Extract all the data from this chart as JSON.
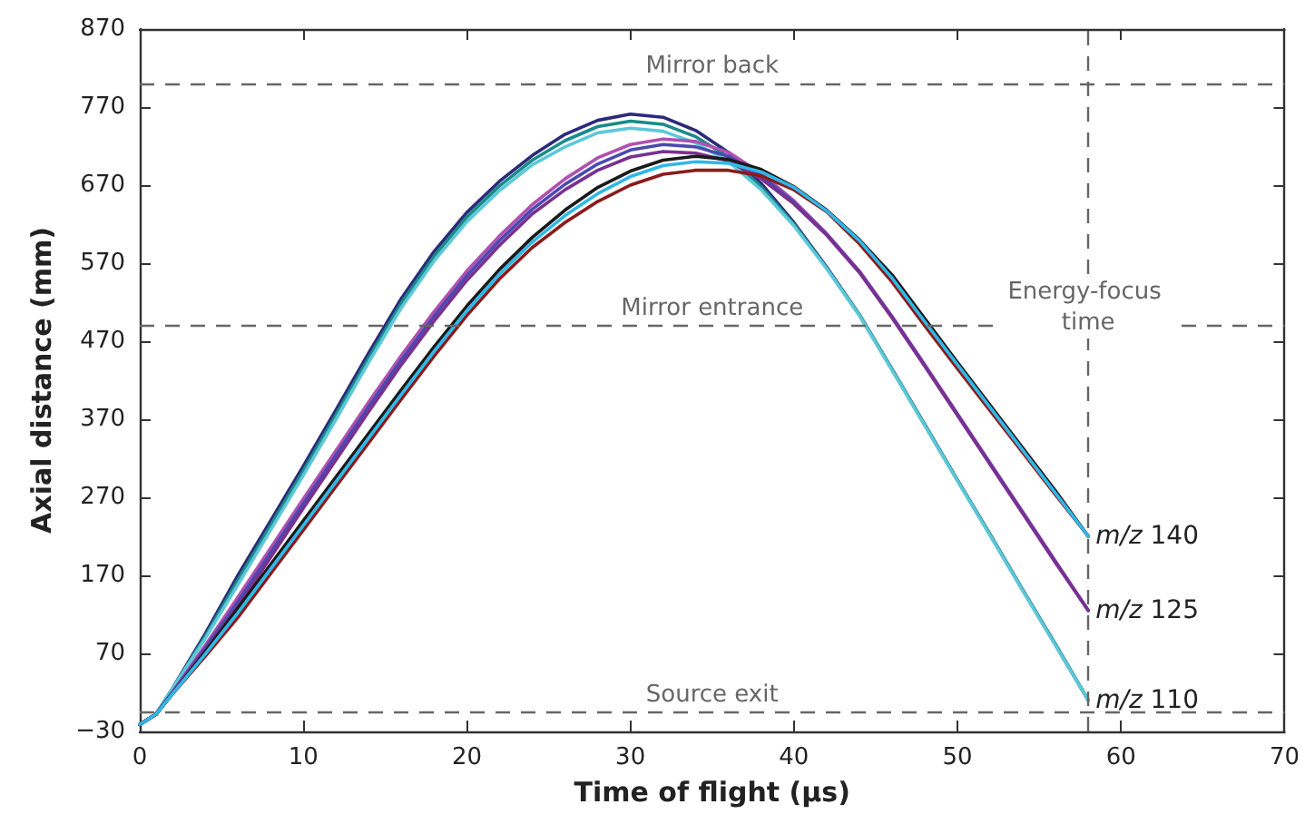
{
  "chart_data": {
    "type": "line",
    "xlabel": "Time of flight (µs)",
    "ylabel": "Axial distance (mm)",
    "x": [
      0,
      1,
      2,
      4,
      6,
      8,
      10,
      12,
      14,
      16,
      18,
      20,
      22,
      24,
      26,
      28,
      30,
      32,
      34,
      36,
      38,
      40,
      42,
      44,
      46,
      48,
      50,
      52,
      54,
      56,
      58
    ],
    "series": [
      {
        "color": "#2b2a7a",
        "values": [
          -21,
          -8,
          25,
          95,
          170,
          240,
          310,
          382,
          455,
          525,
          585,
          635,
          675,
          708,
          735,
          753,
          761,
          757,
          740,
          712,
          672,
          622,
          565,
          504,
          434,
          363,
          292,
          222,
          151,
          81,
          10
        ]
      },
      {
        "color": "#1a8a8a",
        "values": [
          -21,
          -8,
          25,
          92,
          164,
          234,
          304,
          376,
          449,
          519,
          579,
          629,
          669,
          702,
          727,
          745,
          752,
          748,
          732,
          706,
          668,
          620,
          564,
          504,
          434,
          363,
          292,
          222,
          151,
          81,
          10
        ]
      },
      {
        "name": "m/z 110",
        "color": "#5cc8d8",
        "values": [
          -21,
          -8,
          25,
          89,
          158,
          228,
          298,
          370,
          443,
          513,
          573,
          623,
          663,
          696,
          719,
          737,
          743,
          739,
          724,
          700,
          664,
          618,
          563,
          503,
          433,
          362,
          291,
          221,
          150,
          80,
          10
        ]
      },
      {
        "color": "#b050b0",
        "values": [
          -21,
          -8,
          20,
          80,
          142,
          205,
          268,
          330,
          392,
          452,
          508,
          560,
          605,
          645,
          678,
          705,
          722,
          729,
          726,
          712,
          685,
          650,
          608,
          560,
          502,
          440,
          377,
          314,
          251,
          188,
          125
        ]
      },
      {
        "name": "m/z 125",
        "color": "#4a4ab0",
        "values": [
          -21,
          -8,
          20,
          77,
          136,
          199,
          262,
          324,
          386,
          446,
          502,
          554,
          599,
          639,
          671,
          697,
          715,
          722,
          719,
          707,
          682,
          648,
          607,
          559,
          501,
          439,
          376,
          313,
          250,
          187,
          125
        ]
      },
      {
        "color": "#7a3090",
        "values": [
          -21,
          -8,
          20,
          74,
          130,
          193,
          256,
          318,
          380,
          440,
          496,
          548,
          593,
          633,
          664,
          689,
          706,
          713,
          711,
          701,
          678,
          646,
          606,
          558,
          500,
          438,
          375,
          312,
          249,
          186,
          125
        ]
      },
      {
        "color": "#8b1a1a",
        "values": [
          -21,
          -8,
          18,
          66,
          116,
          172,
          228,
          284,
          340,
          396,
          451,
          503,
          550,
          590,
          622,
          649,
          670,
          684,
          689,
          689,
          682,
          664,
          636,
          595,
          546,
          490,
          435,
          381,
          327,
          273,
          220
        ]
      },
      {
        "color": "#1a1a1a",
        "values": [
          -21,
          -8,
          18,
          72,
          128,
          184,
          240,
          296,
          352,
          408,
          463,
          515,
          562,
          603,
          638,
          667,
          688,
          702,
          707,
          703,
          690,
          668,
          638,
          600,
          555,
          499,
          443,
          388,
          333,
          278,
          220
        ]
      },
      {
        "name": "m/z 140",
        "color": "#30b8e8",
        "values": [
          -21,
          -8,
          18,
          69,
          122,
          178,
          234,
          290,
          346,
          402,
          457,
          509,
          556,
          597,
          631,
          659,
          681,
          695,
          700,
          698,
          687,
          667,
          637,
          599,
          551,
          495,
          440,
          385,
          330,
          275,
          220
        ]
      }
    ],
    "xlim": [
      0,
      70
    ],
    "xticks": [
      0,
      10,
      20,
      30,
      40,
      50,
      60,
      70
    ],
    "ylim": [
      -30,
      870
    ],
    "yticks": [
      {
        "value": -30,
        "label": "−30"
      },
      70,
      170,
      270,
      370,
      470,
      570,
      670,
      770,
      870
    ],
    "ref_lines": [
      {
        "axis": "y",
        "value": 800,
        "label": "Mirror back",
        "color": "#666666",
        "line_style": "dashed"
      },
      {
        "axis": "y",
        "value": 490,
        "label": "Mirror entrance",
        "color": "#666666",
        "line_style": "dashed"
      },
      {
        "axis": "y",
        "value": -5,
        "label": "Source exit",
        "color": "#666666",
        "line_style": "dashed"
      },
      {
        "axis": "x",
        "value": 58,
        "label": "Energy-focus time",
        "color": "#666666",
        "line_style": "dashed"
      }
    ],
    "grid": false,
    "marker": "none",
    "line_style": "solid"
  }
}
